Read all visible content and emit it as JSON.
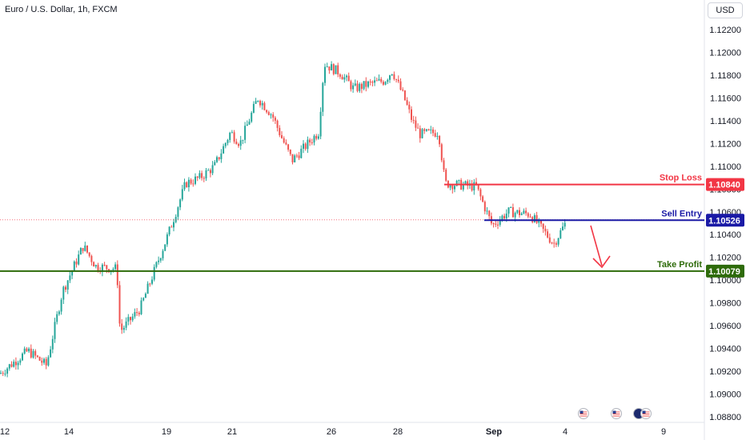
{
  "header": {
    "symbol_title": "Euro / U.S. Dollar, 1h, FXCM",
    "currency": "USD"
  },
  "colors": {
    "up": "#26a69a",
    "down": "#ef5350",
    "stop_loss": "#f23645",
    "sell_entry": "#1a1aa6",
    "take_profit": "#2e6b0a",
    "arrow": "#f23645",
    "axis_text": "#131722",
    "current_price_dotted": "#f23645"
  },
  "chart_data": {
    "type": "candlestick",
    "title": "Euro / U.S. Dollar, 1h, FXCM",
    "ylim": [
      1.0875,
      1.1235
    ],
    "y_ticks": [
      "1.12200",
      "1.12000",
      "1.11800",
      "1.11600",
      "1.11400",
      "1.11200",
      "1.11000",
      "1.10800",
      "1.10600",
      "1.10400",
      "1.10200",
      "1.10000",
      "1.09800",
      "1.09600",
      "1.09400",
      "1.09200",
      "1.09000",
      "1.08800"
    ],
    "x_ticks": [
      "12",
      "14",
      "19",
      "21",
      "26",
      "28",
      "Sep",
      "4",
      "9"
    ],
    "price_path": [
      [
        "12",
        1.0918
      ],
      [
        "13",
        1.0938
      ],
      [
        "13.5",
        1.0925
      ],
      [
        "14",
        1.099
      ],
      [
        "14.3",
        1.103
      ],
      [
        "14.6",
        1.1012
      ],
      [
        "15",
        1.101
      ],
      [
        "15.3",
        1.0955
      ],
      [
        "16",
        1.0975
      ],
      [
        "19",
        1.104
      ],
      [
        "19.5",
        1.1085
      ],
      [
        "20",
        1.109
      ],
      [
        "20.5",
        1.11
      ],
      [
        "21",
        1.113
      ],
      [
        "21.5",
        1.112
      ],
      [
        "22",
        1.116
      ],
      [
        "22.5",
        1.1145
      ],
      [
        "23",
        1.1125
      ],
      [
        "23.5",
        1.1105
      ],
      [
        "25.5",
        1.113
      ],
      [
        "26",
        1.119
      ],
      [
        "26.5",
        1.1182
      ],
      [
        "27",
        1.1168
      ],
      [
        "27.5",
        1.1172
      ],
      [
        "28",
        1.1175
      ],
      [
        "28.3",
        1.1184
      ],
      [
        "28.6",
        1.116
      ],
      [
        "29",
        1.114
      ],
      [
        "29.5",
        1.1128
      ],
      [
        "30",
        1.113
      ],
      [
        "30.3",
        1.1085
      ],
      [
        "30.6",
        1.1082
      ],
      [
        "Sep",
        1.1048
      ],
      [
        "2.5",
        1.106
      ],
      [
        "3",
        1.1058
      ],
      [
        "3.5",
        1.1032
      ],
      [
        "4",
        1.1052
      ]
    ],
    "levels": [
      {
        "name": "Stop Loss",
        "value": 1.1084,
        "label": "1.10840"
      },
      {
        "name": "Sell Entry",
        "value": 1.10526,
        "label": "1.10526"
      },
      {
        "name": "Take Profit",
        "value": 1.10079,
        "label": "1.10079"
      }
    ],
    "grid": false,
    "events_icon": "us-flag-icon"
  }
}
